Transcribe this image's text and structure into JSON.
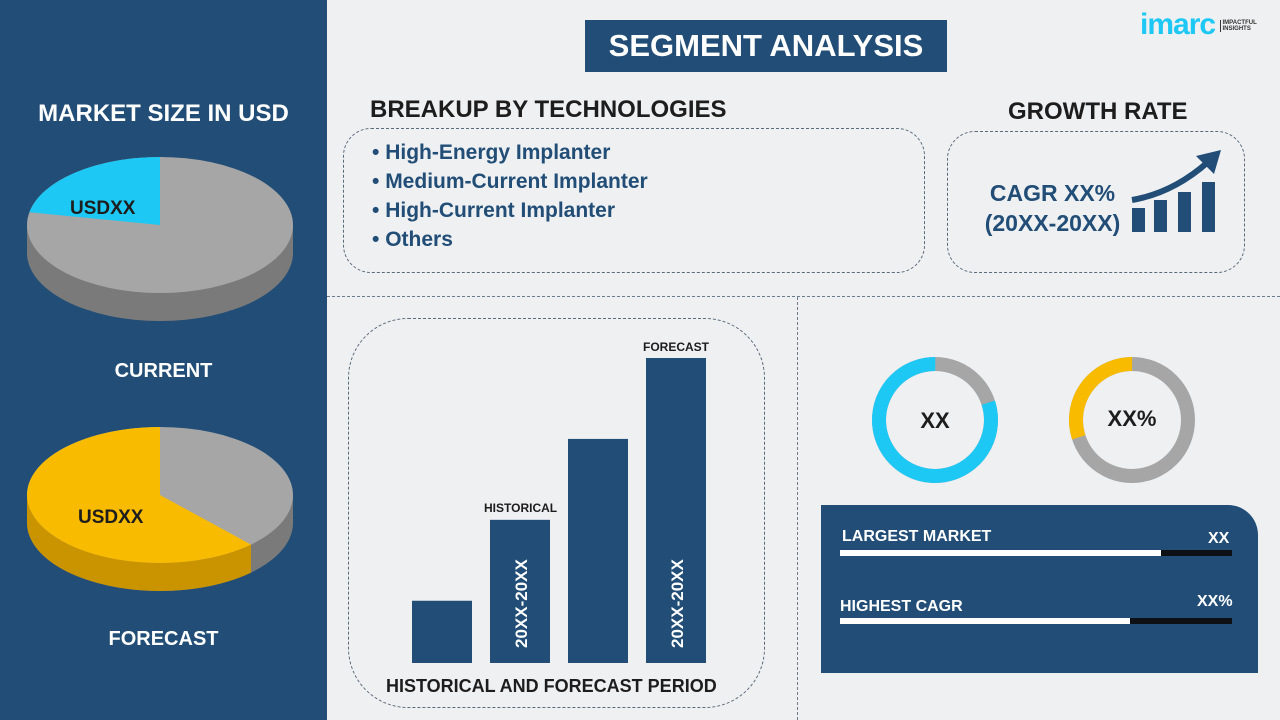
{
  "title": "SEGMENT ANALYSIS",
  "logo": {
    "text": "imarc",
    "tagline": "IMPACTFUL INSIGHTS"
  },
  "left": {
    "heading": "MARKET SIZE IN USD",
    "current": {
      "label": "CURRENT",
      "value": "USDXX",
      "slice_share": 0.22,
      "slice_color": "#1ec8f5"
    },
    "forecast": {
      "label": "FORECAST",
      "value": "USDXX",
      "slice_share": 0.62,
      "slice_color": "#f8bb00"
    }
  },
  "breakup": {
    "heading": "BREAKUP BY TECHNOLOGIES",
    "items": [
      "High-Energy Implanter",
      "Medium-Current Implanter",
      "High-Current Implanter",
      "Others"
    ]
  },
  "growth": {
    "heading": "GROWTH RATE",
    "line1": "CAGR XX%",
    "line2": "(20XX-20XX)"
  },
  "period_chart": {
    "xlabel": "HISTORICAL AND FORECAST PERIOD",
    "historical_label": "HISTORICAL",
    "forecast_label": "FORECAST",
    "bar_text": "20XX-20XX",
    "values": [
      1,
      2.3,
      3.6,
      4.9
    ]
  },
  "donuts": [
    {
      "label": "XX",
      "share": 0.8,
      "color": "#1ec8f5"
    },
    {
      "label": "XX%",
      "share": 0.3,
      "color": "#f8bb00"
    }
  ],
  "stats": [
    {
      "label": "LARGEST MARKET",
      "value": "XX",
      "fill": 0.82
    },
    {
      "label": "HIGHEST CAGR",
      "value": "XX%",
      "fill": 0.74
    }
  ],
  "colors": {
    "navy": "#214d76",
    "cyan": "#1ec8f5",
    "yellow": "#f8bb00",
    "gray": "#a6a6a6"
  }
}
